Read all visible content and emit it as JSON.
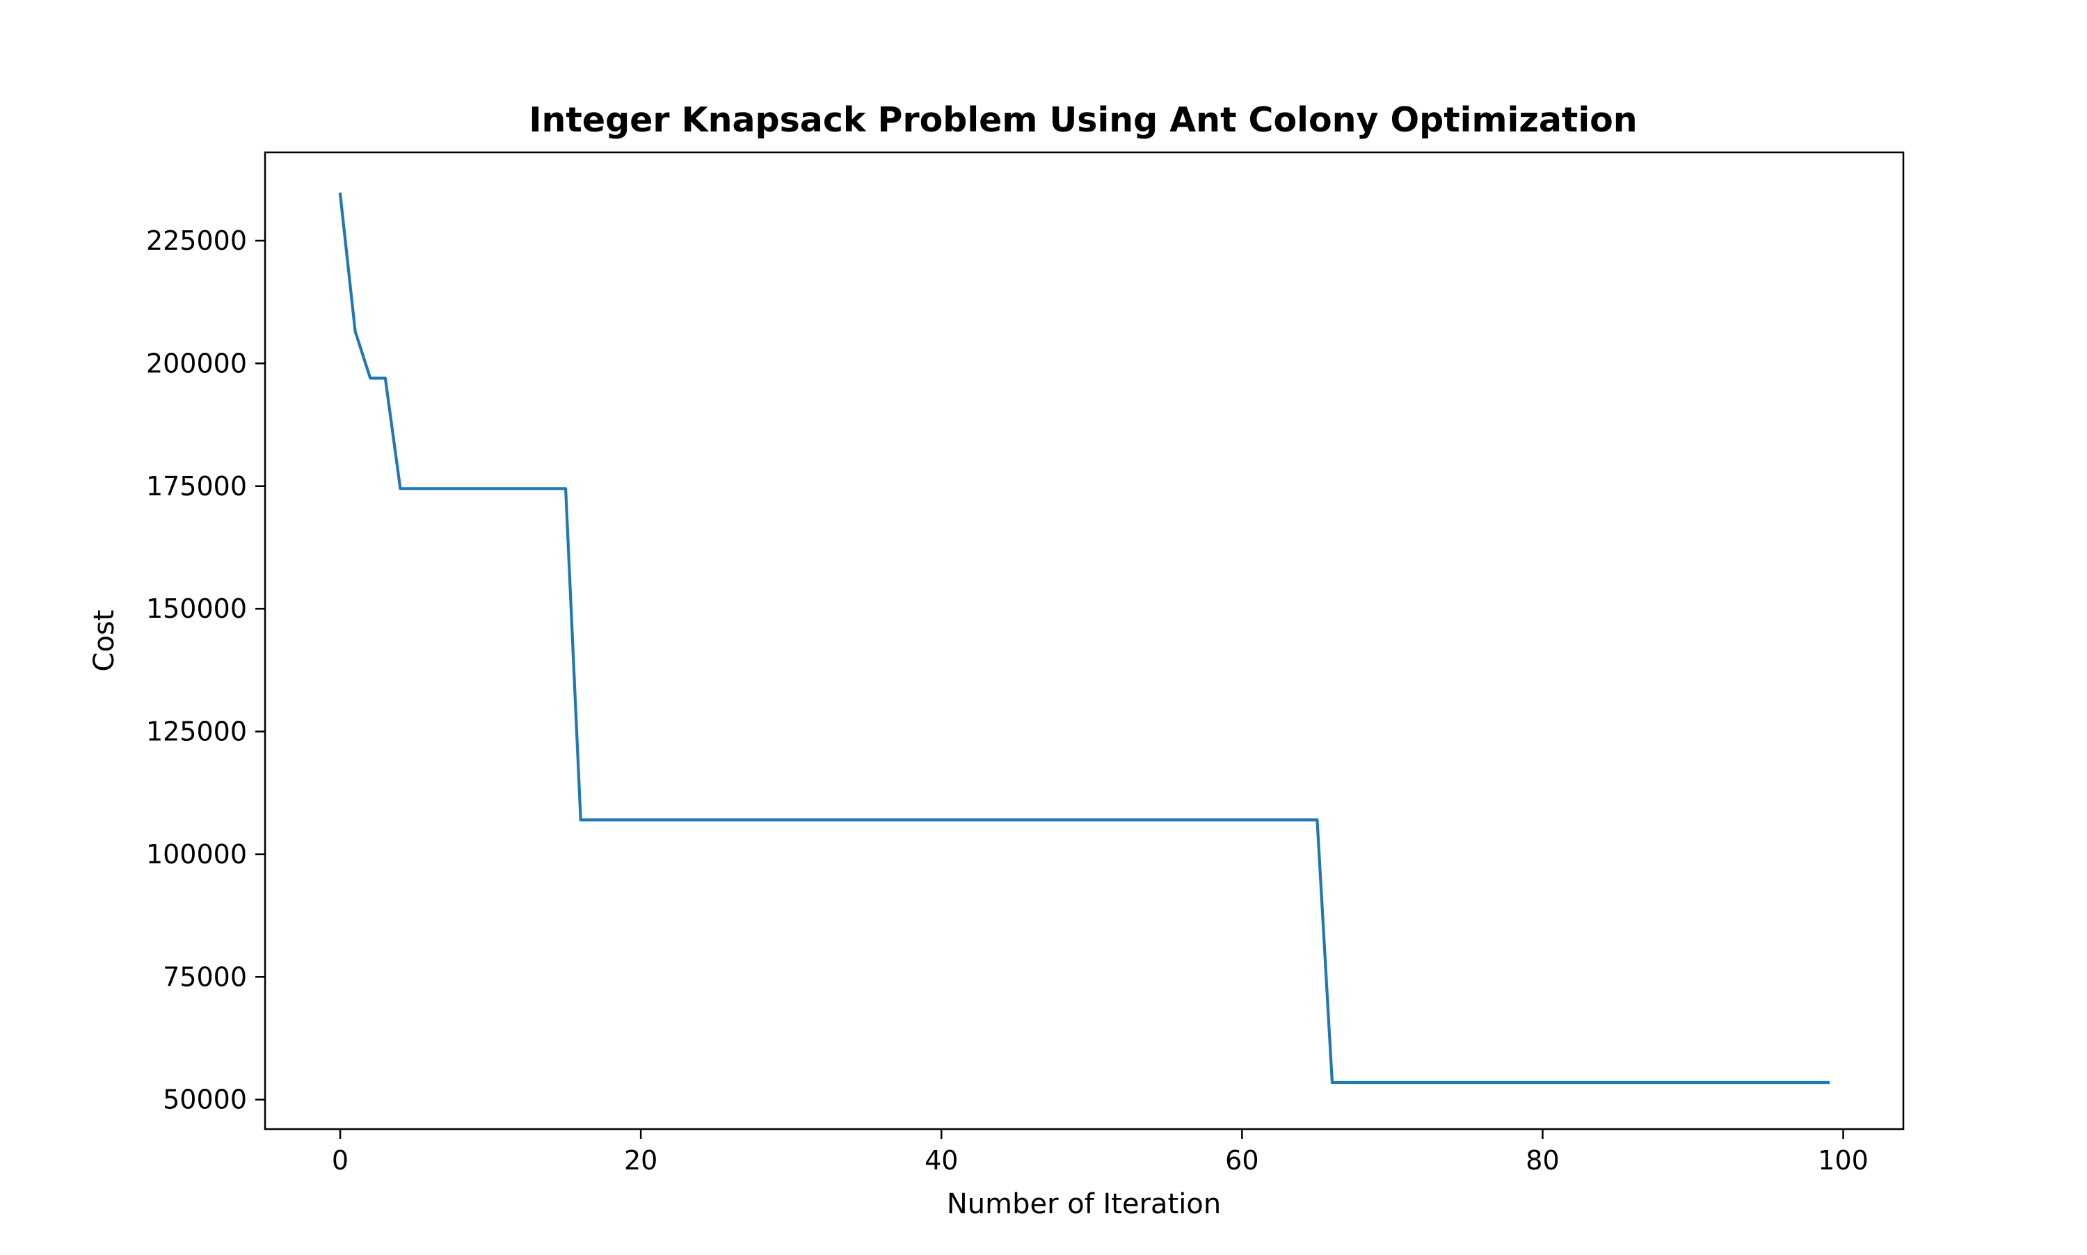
{
  "chart_data": {
    "type": "line",
    "title": "Integer Knapsack Problem Using Ant Colony Optimization",
    "xlabel": "Number of Iteration",
    "ylabel": "Cost",
    "xlim": [
      -5,
      104
    ],
    "ylim": [
      44000,
      243000
    ],
    "xticks": [
      0,
      20,
      40,
      60,
      80,
      100
    ],
    "yticks": [
      50000,
      75000,
      100000,
      125000,
      150000,
      175000,
      200000,
      225000
    ],
    "grid": false,
    "line_color": "#1f77b4",
    "series": [
      {
        "x": [
          0,
          1,
          2,
          3,
          4,
          15,
          16,
          65,
          66,
          99
        ],
        "values": [
          234500,
          206500,
          197000,
          197000,
          174500,
          174500,
          107000,
          107000,
          53500,
          53500
        ]
      }
    ]
  }
}
